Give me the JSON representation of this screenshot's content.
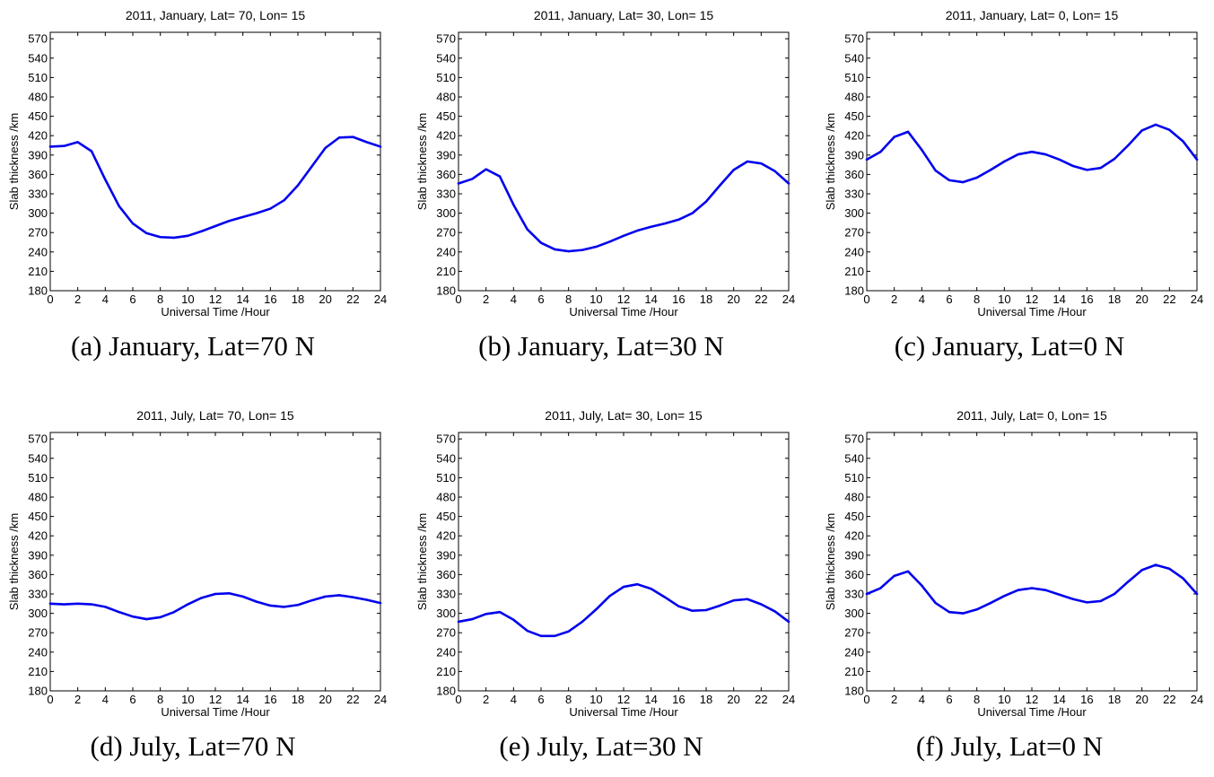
{
  "panels": [
    {
      "caption": "(a) January, Lat=70 N",
      "chart_data": {
        "type": "line",
        "title": "2011, January, Lat= 70, Lon= 15",
        "xlabel": "Universal Time /Hour",
        "ylabel": "Slab thickness /km",
        "xlim": [
          0,
          24
        ],
        "ylim": [
          180,
          580
        ],
        "xticks": [
          0,
          2,
          4,
          6,
          8,
          10,
          12,
          14,
          16,
          18,
          20,
          22,
          24
        ],
        "yticks": [
          180,
          210,
          240,
          270,
          300,
          330,
          360,
          390,
          420,
          450,
          480,
          510,
          540,
          570
        ],
        "grid": false,
        "color": "#0000ee",
        "x": [
          0,
          1,
          2,
          3,
          4,
          5,
          6,
          7,
          8,
          9,
          10,
          11,
          12,
          13,
          14,
          15,
          16,
          17,
          18,
          19,
          20,
          21,
          22,
          23,
          24
        ],
        "series": [
          {
            "values": [
              403,
              404,
              410,
              396,
              352,
              311,
              284,
              269,
              263,
              262,
              265,
              272,
              280,
              288,
              294,
              300,
              307,
              320,
              343,
              372,
              401,
              417,
              418,
              410,
              403
            ]
          }
        ]
      }
    },
    {
      "caption": "(b) January, Lat=30 N",
      "chart_data": {
        "type": "line",
        "title": "2011, January, Lat= 30, Lon= 15",
        "xlabel": "Universal Time /Hour",
        "ylabel": "Slab thickness /km",
        "xlim": [
          0,
          24
        ],
        "ylim": [
          180,
          580
        ],
        "xticks": [
          0,
          2,
          4,
          6,
          8,
          10,
          12,
          14,
          16,
          18,
          20,
          22,
          24
        ],
        "yticks": [
          180,
          210,
          240,
          270,
          300,
          330,
          360,
          390,
          420,
          450,
          480,
          510,
          540,
          570
        ],
        "grid": false,
        "color": "#0000ee",
        "x": [
          0,
          1,
          2,
          3,
          4,
          5,
          6,
          7,
          8,
          9,
          10,
          11,
          12,
          13,
          14,
          15,
          16,
          17,
          18,
          19,
          20,
          21,
          22,
          23,
          24
        ],
        "series": [
          {
            "values": [
              346,
              353,
              368,
              357,
              313,
              275,
              254,
              244,
              241,
              243,
              248,
              256,
              265,
              273,
              279,
              284,
              290,
              300,
              318,
              343,
              367,
              380,
              377,
              365,
              346
            ]
          }
        ]
      }
    },
    {
      "caption": "(c) January, Lat=0 N",
      "chart_data": {
        "type": "line",
        "title": "2011, January, Lat= 0, Lon= 15",
        "xlabel": "Universal Time /Hour",
        "ylabel": "Slab thickness /km",
        "xlim": [
          0,
          24
        ],
        "ylim": [
          180,
          580
        ],
        "xticks": [
          0,
          2,
          4,
          6,
          8,
          10,
          12,
          14,
          16,
          18,
          20,
          22,
          24
        ],
        "yticks": [
          180,
          210,
          240,
          270,
          300,
          330,
          360,
          390,
          420,
          450,
          480,
          510,
          540,
          570
        ],
        "grid": false,
        "color": "#0000ee",
        "x": [
          0,
          1,
          2,
          3,
          4,
          5,
          6,
          7,
          8,
          9,
          10,
          11,
          12,
          13,
          14,
          15,
          16,
          17,
          18,
          19,
          20,
          21,
          22,
          23,
          24
        ],
        "series": [
          {
            "values": [
              383,
              395,
              418,
              426,
              398,
              366,
              351,
              348,
              355,
              367,
              380,
              391,
              395,
              391,
              383,
              373,
              367,
              370,
              384,
              405,
              428,
              437,
              429,
              411,
              383
            ]
          }
        ]
      }
    },
    {
      "caption": "(d) July, Lat=70 N",
      "chart_data": {
        "type": "line",
        "title": "2011, July, Lat= 70, Lon= 15",
        "xlabel": "Universal Time /Hour",
        "ylabel": "Slab thickness /km",
        "xlim": [
          0,
          24
        ],
        "ylim": [
          180,
          580
        ],
        "xticks": [
          0,
          2,
          4,
          6,
          8,
          10,
          12,
          14,
          16,
          18,
          20,
          22,
          24
        ],
        "yticks": [
          180,
          210,
          240,
          270,
          300,
          330,
          360,
          390,
          420,
          450,
          480,
          510,
          540,
          570
        ],
        "grid": false,
        "color": "#0000ee",
        "x": [
          0,
          1,
          2,
          3,
          4,
          5,
          6,
          7,
          8,
          9,
          10,
          11,
          12,
          13,
          14,
          15,
          16,
          17,
          18,
          19,
          20,
          21,
          22,
          23,
          24
        ],
        "series": [
          {
            "values": [
              315,
              314,
              315,
              314,
              310,
              302,
              295,
              291,
              294,
              302,
              314,
              324,
              330,
              331,
              326,
              318,
              312,
              310,
              313,
              320,
              326,
              328,
              325,
              321,
              316
            ]
          }
        ]
      }
    },
    {
      "caption": "(e) July, Lat=30 N",
      "chart_data": {
        "type": "line",
        "title": "2011, July, Lat= 30, Lon= 15",
        "xlabel": "Universal Time /Hour",
        "ylabel": "Slab thickness /km",
        "xlim": [
          0,
          24
        ],
        "ylim": [
          180,
          580
        ],
        "xticks": [
          0,
          2,
          4,
          6,
          8,
          10,
          12,
          14,
          16,
          18,
          20,
          22,
          24
        ],
        "yticks": [
          180,
          210,
          240,
          270,
          300,
          330,
          360,
          390,
          420,
          450,
          480,
          510,
          540,
          570
        ],
        "grid": false,
        "color": "#0000ee",
        "x": [
          0,
          1,
          2,
          3,
          4,
          5,
          6,
          7,
          8,
          9,
          10,
          11,
          12,
          13,
          14,
          15,
          16,
          17,
          18,
          19,
          20,
          21,
          22,
          23,
          24
        ],
        "series": [
          {
            "values": [
              287,
              291,
              299,
              302,
              290,
              273,
              265,
              265,
              272,
              287,
              306,
              327,
              341,
              345,
              338,
              325,
              311,
              304,
              305,
              312,
              320,
              322,
              314,
              303,
              287
            ]
          }
        ]
      }
    },
    {
      "caption": "(f) July, Lat=0 N",
      "chart_data": {
        "type": "line",
        "title": "2011, July, Lat= 0, Lon= 15",
        "xlabel": "Universal Time /Hour",
        "ylabel": "Slab thickness /km",
        "xlim": [
          0,
          24
        ],
        "ylim": [
          180,
          580
        ],
        "xticks": [
          0,
          2,
          4,
          6,
          8,
          10,
          12,
          14,
          16,
          18,
          20,
          22,
          24
        ],
        "yticks": [
          180,
          210,
          240,
          270,
          300,
          330,
          360,
          390,
          420,
          450,
          480,
          510,
          540,
          570
        ],
        "grid": false,
        "color": "#0000ee",
        "x": [
          0,
          1,
          2,
          3,
          4,
          5,
          6,
          7,
          8,
          9,
          10,
          11,
          12,
          13,
          14,
          15,
          16,
          17,
          18,
          19,
          20,
          21,
          22,
          23,
          24
        ],
        "series": [
          {
            "values": [
              330,
              339,
              358,
              365,
              343,
              316,
              302,
              300,
              306,
              316,
              327,
              336,
              339,
              336,
              329,
              322,
              317,
              319,
              330,
              349,
              367,
              375,
              369,
              354,
              330
            ]
          }
        ]
      }
    }
  ]
}
